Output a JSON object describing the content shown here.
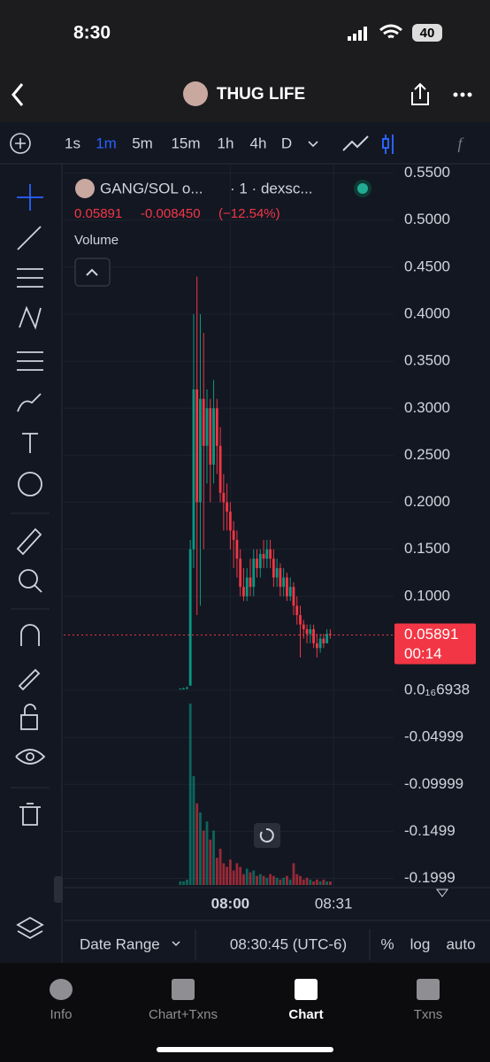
{
  "status_bar": {
    "time": "8:30",
    "battery": "40"
  },
  "header": {
    "title": "THUG LIFE"
  },
  "toolbar": {
    "intervals": [
      "1s",
      "1m",
      "5m",
      "15m",
      "1h",
      "4h",
      "D"
    ],
    "active_interval": "1m"
  },
  "legend": {
    "symbol": "GANG/SOL o...",
    "source": "· 1 · dexsc...",
    "last": "0.05891",
    "change": "-0.008450",
    "change_pct": "(−12.54%)",
    "volume_label": "Volume"
  },
  "chart_data": {
    "type": "candlestick",
    "x": [
      -15,
      -14,
      -13,
      -12,
      -11,
      -10,
      -9,
      -8,
      -7,
      -6,
      -5,
      -4,
      -3,
      -2,
      -1,
      0,
      1,
      2,
      3,
      4,
      5,
      6,
      7,
      8,
      9,
      10,
      11,
      12,
      13,
      14,
      15,
      16,
      17,
      18,
      19,
      20,
      21,
      22,
      23,
      24,
      25,
      26,
      27,
      28,
      29,
      30
    ],
    "open": [
      0.002,
      0.002,
      0.002,
      0.005,
      0.15,
      0.32,
      0.2,
      0.31,
      0.26,
      0.3,
      0.24,
      0.3,
      0.26,
      0.21,
      0.2,
      0.19,
      0.17,
      0.16,
      0.14,
      0.11,
      0.1,
      0.12,
      0.11,
      0.14,
      0.13,
      0.145,
      0.14,
      0.15,
      0.14,
      0.12,
      0.13,
      0.11,
      0.12,
      0.1,
      0.11,
      0.09,
      0.08,
      0.07,
      0.065,
      0.06,
      0.065,
      0.05,
      0.045,
      0.055,
      0.05,
      0.06
    ],
    "high": [
      0.002,
      0.003,
      0.004,
      0.16,
      0.4,
      0.44,
      0.4,
      0.38,
      0.32,
      0.31,
      0.33,
      0.31,
      0.28,
      0.23,
      0.22,
      0.2,
      0.18,
      0.17,
      0.15,
      0.13,
      0.13,
      0.14,
      0.15,
      0.15,
      0.15,
      0.16,
      0.16,
      0.16,
      0.15,
      0.14,
      0.135,
      0.13,
      0.125,
      0.12,
      0.115,
      0.1,
      0.09,
      0.075,
      0.07,
      0.07,
      0.07,
      0.06,
      0.06,
      0.06,
      0.065,
      0.065
    ],
    "low": [
      0.002,
      0.001,
      0.001,
      0.005,
      0.13,
      0.08,
      0.09,
      0.15,
      0.22,
      0.2,
      0.22,
      0.23,
      0.2,
      0.17,
      0.17,
      0.15,
      0.13,
      0.12,
      0.1,
      0.095,
      0.095,
      0.1,
      0.1,
      0.12,
      0.12,
      0.13,
      0.13,
      0.13,
      0.11,
      0.11,
      0.1,
      0.1,
      0.095,
      0.095,
      0.08,
      0.07,
      0.035,
      0.055,
      0.05,
      0.05,
      0.045,
      0.035,
      0.04,
      0.045,
      0.05,
      0.055
    ],
    "close": [
      0.002,
      0.002,
      0.003,
      0.15,
      0.32,
      0.2,
      0.31,
      0.26,
      0.3,
      0.24,
      0.3,
      0.26,
      0.21,
      0.2,
      0.19,
      0.17,
      0.16,
      0.14,
      0.11,
      0.1,
      0.12,
      0.11,
      0.14,
      0.13,
      0.145,
      0.14,
      0.15,
      0.14,
      0.12,
      0.13,
      0.11,
      0.12,
      0.1,
      0.11,
      0.09,
      0.08,
      0.07,
      0.065,
      0.06,
      0.065,
      0.05,
      0.045,
      0.055,
      0.05,
      0.06,
      0.05891
    ],
    "volume": [
      2,
      2,
      3,
      100,
      60,
      45,
      40,
      30,
      35,
      25,
      30,
      15,
      20,
      12,
      10,
      14,
      8,
      12,
      10,
      6,
      9,
      7,
      8,
      5,
      6,
      5,
      4,
      6,
      5,
      4,
      3,
      4,
      5,
      3,
      12,
      6,
      5,
      3,
      4,
      3,
      2,
      3,
      2,
      3,
      2,
      2
    ],
    "xlim": [
      -50,
      49
    ],
    "ylim": [
      -0.207,
      0.56
    ],
    "yticks": [
      {
        "value": 0.55,
        "label": "0.5500"
      },
      {
        "value": 0.5,
        "label": "0.5000"
      },
      {
        "value": 0.45,
        "label": "0.4500"
      },
      {
        "value": 0.4,
        "label": "0.4000"
      },
      {
        "value": 0.35,
        "label": "0.3500"
      },
      {
        "value": 0.3,
        "label": "0.3000"
      },
      {
        "value": 0.25,
        "label": "0.2500"
      },
      {
        "value": 0.2,
        "label": "0.2000"
      },
      {
        "value": 0.15,
        "label": "0.1500"
      },
      {
        "value": 0.1,
        "label": "0.1000"
      },
      {
        "value": 6.938e-17,
        "label": "0.0₁₆6938"
      },
      -0.04999,
      -0.09999,
      -0.1499,
      -0.1999
    ],
    "xticks": [
      {
        "value": 0,
        "label": "08:00"
      },
      {
        "value": 31,
        "label": "08:31"
      }
    ],
    "up_color": "#089981",
    "down_color": "#f23645",
    "last_price": {
      "value": 0.05891,
      "label": "0.05891"
    },
    "countdown": "00:14"
  },
  "footer_bar": {
    "date_range": "Date Range",
    "time": "08:30:45 (UTC-6)",
    "options": [
      "%",
      "log",
      "auto"
    ]
  },
  "tabs": [
    "Info",
    "Chart+Txns",
    "Chart",
    "Txns"
  ],
  "active_tab": "Chart"
}
